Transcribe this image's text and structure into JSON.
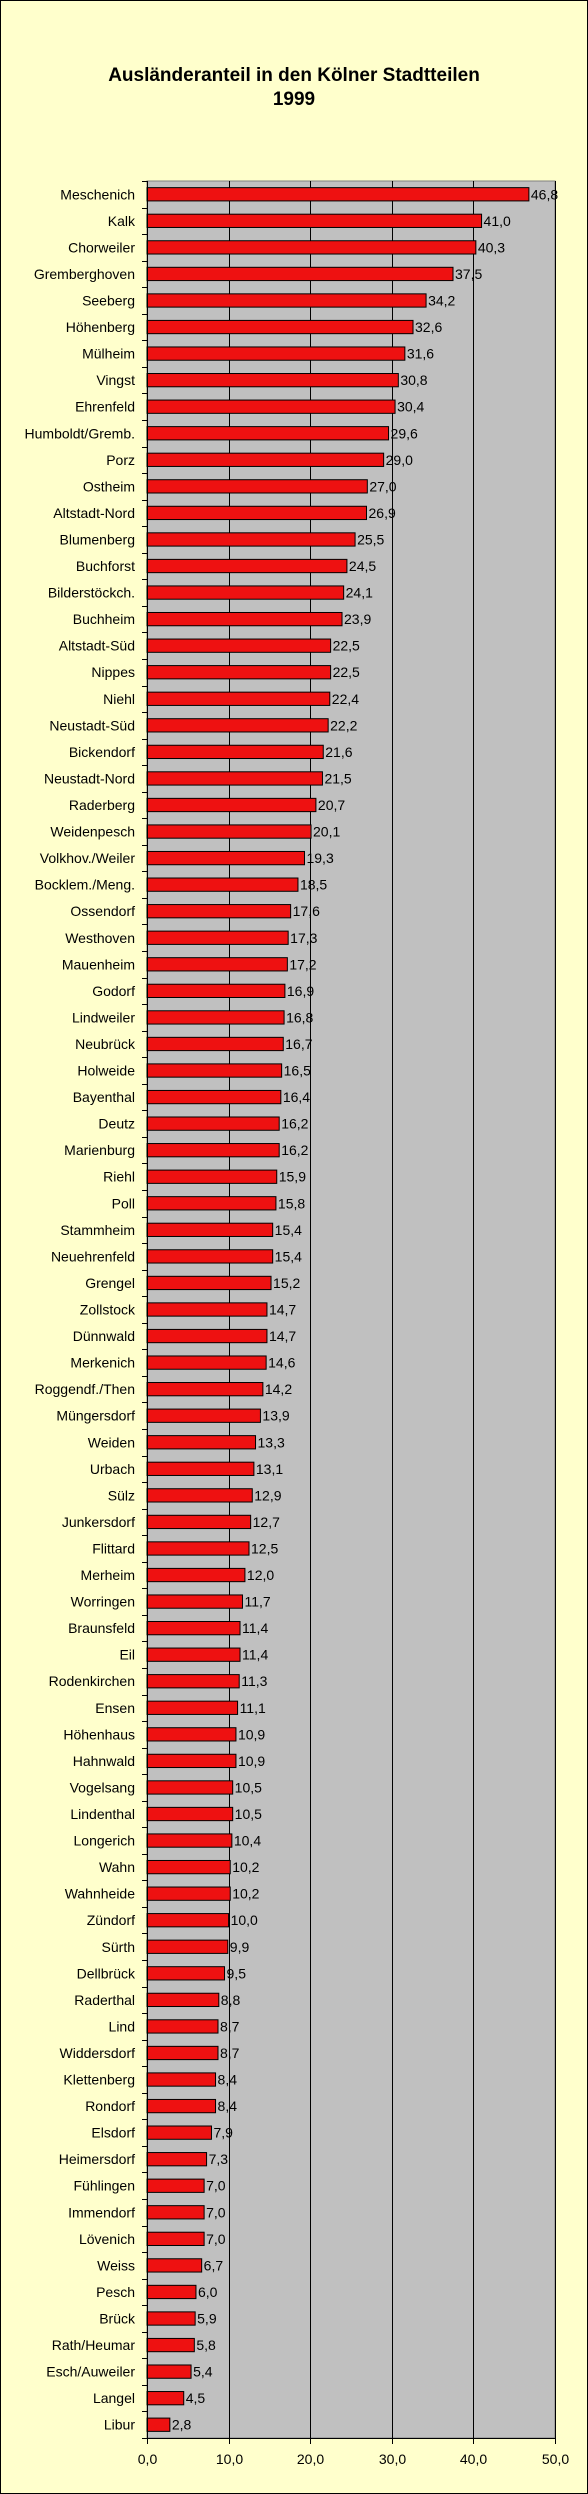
{
  "chart_data": {
    "type": "bar",
    "orientation": "horizontal",
    "title": [
      "Ausländeranteil in den Kölner Stadtteilen",
      "1999"
    ],
    "xlim": [
      0,
      50
    ],
    "xticks": [
      "0,0",
      "10,0",
      "20,0",
      "30,0",
      "40,0",
      "50,0"
    ],
    "grid": true,
    "legend": "none",
    "colors": {
      "bar": "#ee1111",
      "bar_edge": "#000000",
      "plot_background": "#c0c0c0",
      "background": "#ffffcc"
    },
    "categories": [
      "Meschenich",
      "Kalk",
      "Chorweiler",
      "Gremberghoven",
      "Seeberg",
      "Höhenberg",
      "Mülheim",
      "Vingst",
      "Ehrenfeld",
      "Humboldt/Gremb.",
      "Porz",
      "Ostheim",
      "Altstadt-Nord",
      "Blumenberg",
      "Buchforst",
      "Bilderstöckch.",
      "Buchheim",
      "Altstadt-Süd",
      "Nippes",
      "Niehl",
      "Neustadt-Süd",
      "Bickendorf",
      "Neustadt-Nord",
      "Raderberg",
      "Weidenpesch",
      "Volkhov./Weiler",
      "Bocklem./Meng.",
      "Ossendorf",
      "Westhoven",
      "Mauenheim",
      "Godorf",
      "Lindweiler",
      "Neubrück",
      "Holweide",
      "Bayenthal",
      "Deutz",
      "Marienburg",
      "Riehl",
      "Poll",
      "Stammheim",
      "Neuehrenfeld",
      "Grengel",
      "Zollstock",
      "Dünnwald",
      "Merkenich",
      "Roggendf./Then",
      "Müngersdorf",
      "Weiden",
      "Urbach",
      "Sülz",
      "Junkersdorf",
      "Flittard",
      "Merheim",
      "Worringen",
      "Braunsfeld",
      "Eil",
      "Rodenkirchen",
      "Ensen",
      "Höhenhaus",
      "Hahnwald",
      "Vogelsang",
      "Lindenthal",
      "Longerich",
      "Wahn",
      "Wahnheide",
      "Zündorf",
      "Sürth",
      "Dellbrück",
      "Raderthal",
      "Lind",
      "Widdersdorf",
      "Klettenberg",
      "Rondorf",
      "Elsdorf",
      "Heimersdorf",
      "Fühlingen",
      "Immendorf",
      "Lövenich",
      "Weiss",
      "Pesch",
      "Brück",
      "Rath/Heumar",
      "Esch/Auweiler",
      "Langel",
      "Libur"
    ],
    "values": [
      46.8,
      41.0,
      40.3,
      37.5,
      34.2,
      32.6,
      31.6,
      30.8,
      30.4,
      29.6,
      29.0,
      27.0,
      26.9,
      25.5,
      24.5,
      24.1,
      23.9,
      22.5,
      22.5,
      22.4,
      22.2,
      21.6,
      21.5,
      20.7,
      20.1,
      19.3,
      18.5,
      17.6,
      17.3,
      17.2,
      16.9,
      16.8,
      16.7,
      16.5,
      16.4,
      16.2,
      16.2,
      15.9,
      15.8,
      15.4,
      15.4,
      15.2,
      14.7,
      14.7,
      14.6,
      14.2,
      13.9,
      13.3,
      13.1,
      12.9,
      12.7,
      12.5,
      12.0,
      11.7,
      11.4,
      11.4,
      11.3,
      11.1,
      10.9,
      10.9,
      10.5,
      10.5,
      10.4,
      10.2,
      10.2,
      10.0,
      9.9,
      9.5,
      8.8,
      8.7,
      8.7,
      8.4,
      8.4,
      7.9,
      7.3,
      7.0,
      7.0,
      7.0,
      6.7,
      6.0,
      5.9,
      5.8,
      5.4,
      4.5,
      2.8
    ],
    "value_labels": [
      "46,8",
      "41,0",
      "40,3",
      "37,5",
      "34,2",
      "32,6",
      "31,6",
      "30,8",
      "30,4",
      "29,6",
      "29,0",
      "27,0",
      "26,9",
      "25,5",
      "24,5",
      "24,1",
      "23,9",
      "22,5",
      "22,5",
      "22,4",
      "22,2",
      "21,6",
      "21,5",
      "20,7",
      "20,1",
      "19,3",
      "18,5",
      "17,6",
      "17,3",
      "17,2",
      "16,9",
      "16,8",
      "16,7",
      "16,5",
      "16,4",
      "16,2",
      "16,2",
      "15,9",
      "15,8",
      "15,4",
      "15,4",
      "15,2",
      "14,7",
      "14,7",
      "14,6",
      "14,2",
      "13,9",
      "13,3",
      "13,1",
      "12,9",
      "12,7",
      "12,5",
      "12,0",
      "11,7",
      "11,4",
      "11,4",
      "11,3",
      "11,1",
      "10,9",
      "10,9",
      "10,5",
      "10,5",
      "10,4",
      "10,2",
      "10,2",
      "10,0",
      "9,9",
      "9,5",
      "8,8",
      "8,7",
      "8,7",
      "8,4",
      "8,4",
      "7,9",
      "7,3",
      "7,0",
      "7,0",
      "7,0",
      "6,7",
      "6,0",
      "5,9",
      "5,8",
      "5,4",
      "4,5",
      "2,8"
    ]
  }
}
